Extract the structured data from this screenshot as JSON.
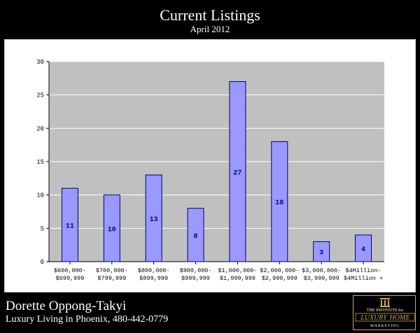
{
  "header": {
    "title": "Current Listings",
    "subtitle": "April 2012"
  },
  "footer": {
    "agent_name": "Dorette Oppong-Takyi",
    "tagline": "Luxury Living in Phoenix, 480-442-0779",
    "logo": {
      "top_text": "THE INSTITUTE for",
      "main_left": "LUXURY",
      "main_right": "HOME",
      "bottom_text": "MARKETING"
    }
  },
  "colors": {
    "plot_background": "#c0c0c0",
    "bar_fill": "#9999ff",
    "bar_stroke": "#000066",
    "data_label": "#000099",
    "logo_gold": "#c9a951"
  },
  "chart_data": {
    "type": "bar",
    "title": "",
    "xlabel": "",
    "ylabel": "",
    "ylim": [
      0,
      30
    ],
    "yticks": [
      0,
      5,
      10,
      15,
      20,
      25,
      30
    ],
    "grid": true,
    "legend": "none",
    "categories": [
      [
        "$600,000-",
        "$699,999"
      ],
      [
        "$700,000-",
        "$799,999"
      ],
      [
        "$800,000-",
        "$899,999"
      ],
      [
        "$900,000-",
        "$999,999"
      ],
      [
        "$1,000,000-",
        "$1,999,999"
      ],
      [
        "$2,000,000-",
        "$2,999,999"
      ],
      [
        "$3,000,000-",
        "$3,999,999"
      ],
      [
        "$4Million-",
        "$4Million +"
      ]
    ],
    "values": [
      11,
      10,
      13,
      8,
      27,
      18,
      3,
      4
    ]
  }
}
